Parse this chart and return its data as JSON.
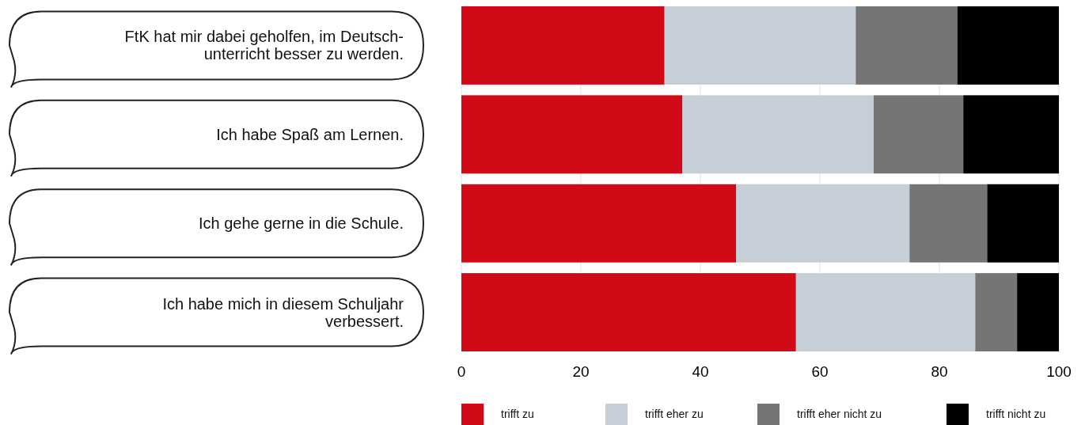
{
  "chart_data": {
    "type": "bar",
    "orientation": "horizontal",
    "stacked": true,
    "categories": [
      "FtK hat mir dabei geholfen, im Deutsch-\nunterricht besser zu werden.",
      "Ich habe Spaß am Lernen.",
      "Ich gehe gerne in die Schule.",
      "Ich habe mich in diesem Schuljahr\nverbessert."
    ],
    "series": [
      {
        "name": "trifft zu",
        "color": "#d10a17",
        "values": [
          34,
          37,
          46,
          56
        ]
      },
      {
        "name": "trifft eher zu",
        "color": "#c6cfd7",
        "values": [
          32,
          32,
          29,
          30
        ]
      },
      {
        "name": "trifft eher nicht zu",
        "color": "#757575",
        "values": [
          17,
          15,
          13,
          7
        ]
      },
      {
        "name": "trifft nicht zu",
        "color": "#000000",
        "values": [
          17,
          16,
          12,
          7
        ]
      }
    ],
    "xlim": [
      0,
      100
    ],
    "xticks": [
      0,
      20,
      40,
      60,
      80,
      100
    ],
    "grid": "x",
    "legend": "bottom"
  }
}
